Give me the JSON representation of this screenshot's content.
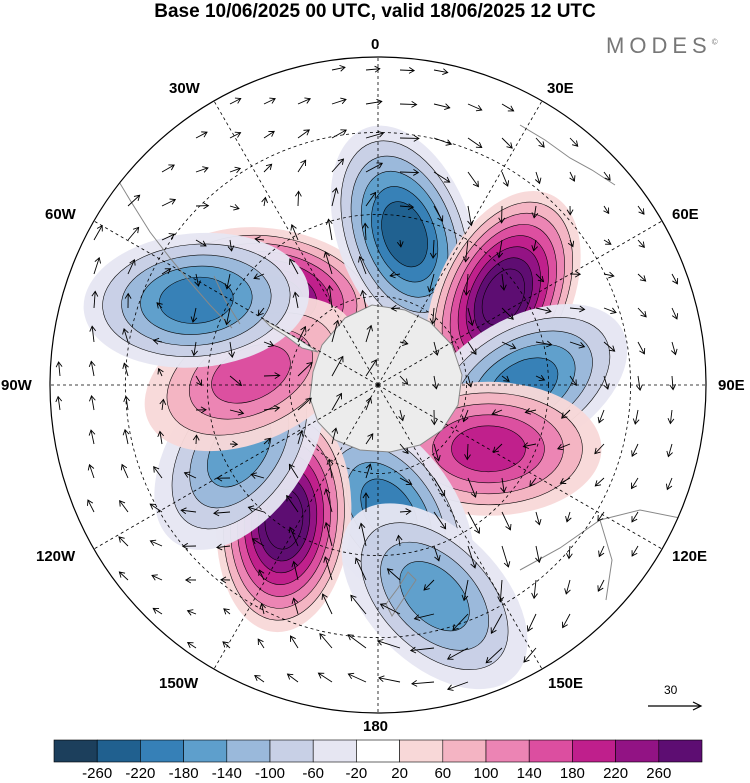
{
  "title": "Base 10/06/2025 00 UTC, valid 18/06/2025 12 UTC",
  "brand": "MODES",
  "brand_mark": "©",
  "longitude_labels": {
    "top": "0",
    "bottom": "180",
    "left": "90W",
    "right": "90E",
    "w30": "30W",
    "e30": "30E",
    "w60": "60W",
    "e60": "60E",
    "w120": "120W",
    "e120": "120E",
    "w150": "150W",
    "e150": "150E"
  },
  "reference_vector": "30",
  "colorbar": {
    "colors": [
      "#1c3f5c",
      "#20608f",
      "#3680b7",
      "#5e9fcc",
      "#9ab9db",
      "#c8d0e6",
      "#e6e6f2",
      "#ffffff",
      "#f8d8d8",
      "#f4b4c3",
      "#ec84b4",
      "#dc4ea0",
      "#bf1f8c",
      "#921384",
      "#5d0d72"
    ],
    "ticks": [
      "-260",
      "-220",
      "-180",
      "-140",
      "-100",
      "-60",
      "-20",
      "20",
      "60",
      "100",
      "140",
      "180",
      "220",
      "260"
    ]
  },
  "anomaly_centers": [
    {
      "lon_deg": -50,
      "lat_deg": -52,
      "sign": "positive",
      "value": 260
    },
    {
      "lon_deg": 10,
      "lat_deg": -48,
      "sign": "negative",
      "value": -240
    },
    {
      "lon_deg": 55,
      "lat_deg": -48,
      "sign": "positive",
      "value": 300
    },
    {
      "lon_deg": 90,
      "lat_deg": -50,
      "sign": "negative",
      "value": -200
    },
    {
      "lon_deg": 120,
      "lat_deg": -55,
      "sign": "positive",
      "value": 180
    },
    {
      "lon_deg": 175,
      "lat_deg": -55,
      "sign": "negative",
      "value": -200
    },
    {
      "lon_deg": -145,
      "lat_deg": -45,
      "sign": "positive",
      "value": 300
    },
    {
      "lon_deg": -115,
      "lat_deg": -48,
      "sign": "negative",
      "value": -160
    },
    {
      "lon_deg": -85,
      "lat_deg": -55,
      "sign": "positive",
      "value": 150
    },
    {
      "lon_deg": -65,
      "lat_deg": -35,
      "sign": "negative",
      "value": -180
    },
    {
      "lon_deg": 165,
      "lat_deg": -30,
      "sign": "negative",
      "value": -140
    }
  ]
}
